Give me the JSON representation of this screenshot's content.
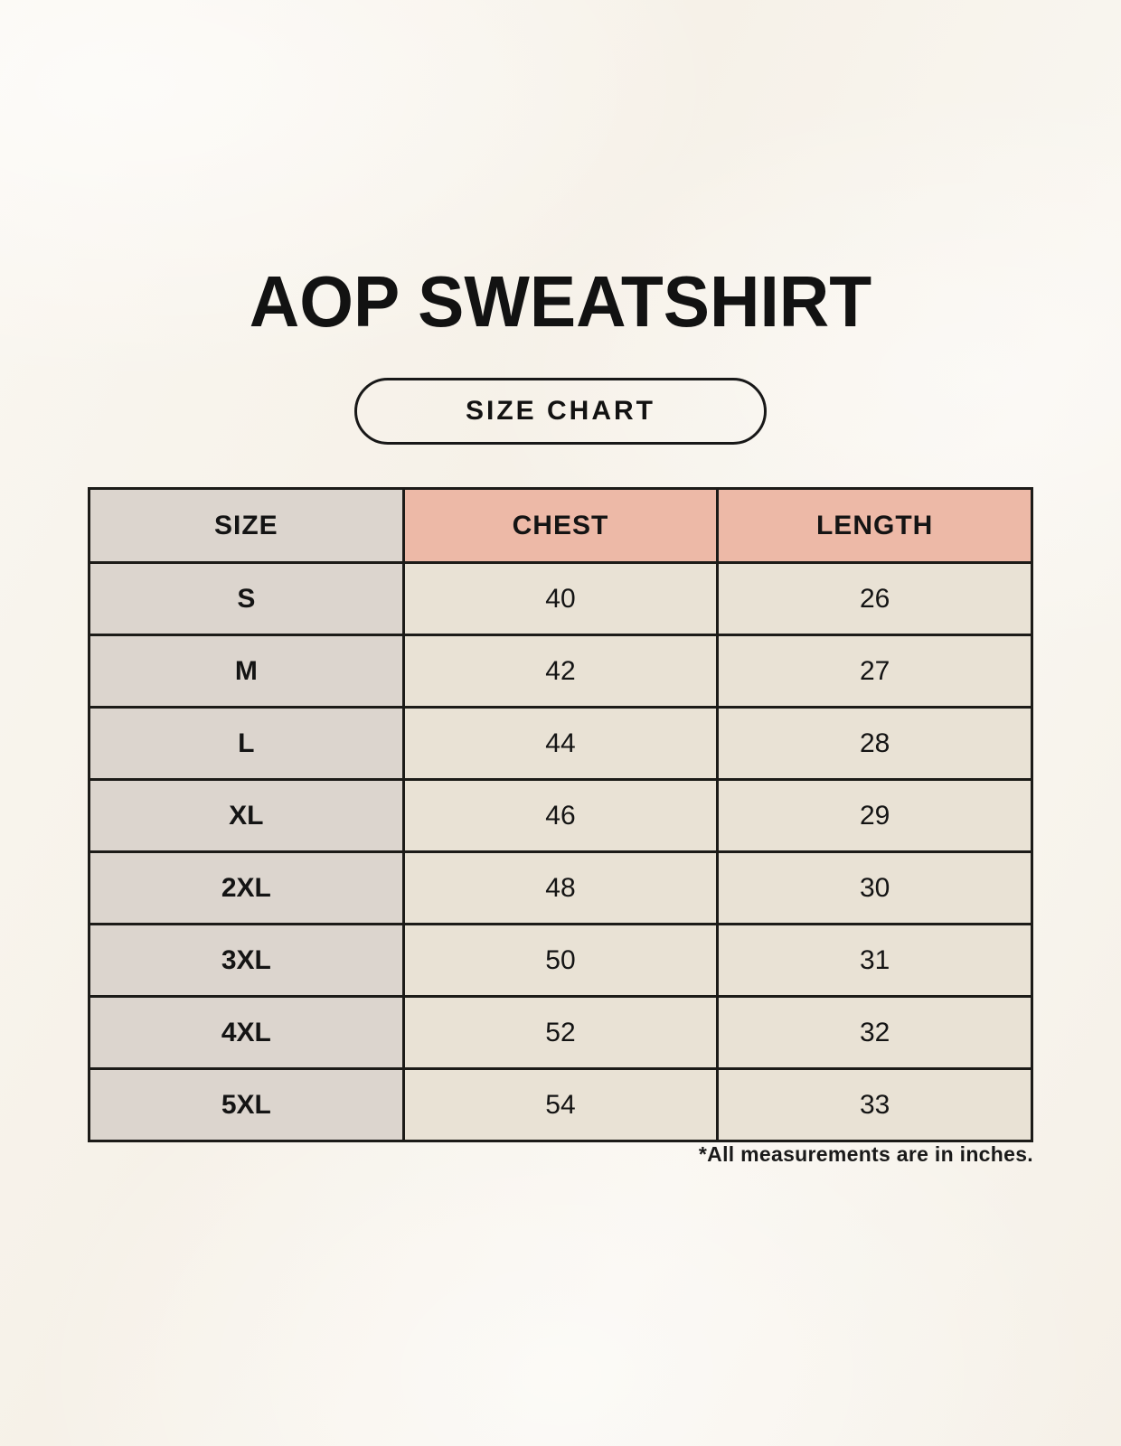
{
  "page": {
    "title": "AOP SWEATSHIRT",
    "badge_label": "SIZE CHART",
    "note": "*All measurements are in inches."
  },
  "chart_data": {
    "type": "table",
    "title": "AOP SWEATSHIRT",
    "subtitle": "SIZE CHART",
    "columns": [
      "SIZE",
      "CHEST",
      "LENGTH"
    ],
    "rows": [
      [
        "S",
        "40",
        "26"
      ],
      [
        "M",
        "42",
        "27"
      ],
      [
        "L",
        "44",
        "28"
      ],
      [
        "XL",
        "46",
        "29"
      ],
      [
        "2XL",
        "48",
        "30"
      ],
      [
        "3XL",
        "50",
        "31"
      ],
      [
        "4XL",
        "52",
        "32"
      ],
      [
        "5XL",
        "54",
        "33"
      ]
    ],
    "units_note": "*All measurements are in inches."
  },
  "colors": {
    "background": "#f8f4ed",
    "header_accent": "#edb9a7",
    "size_column": "#dcd5ce",
    "cell": "#e9e2d5",
    "border": "#1c1b18",
    "text": "#141414"
  }
}
